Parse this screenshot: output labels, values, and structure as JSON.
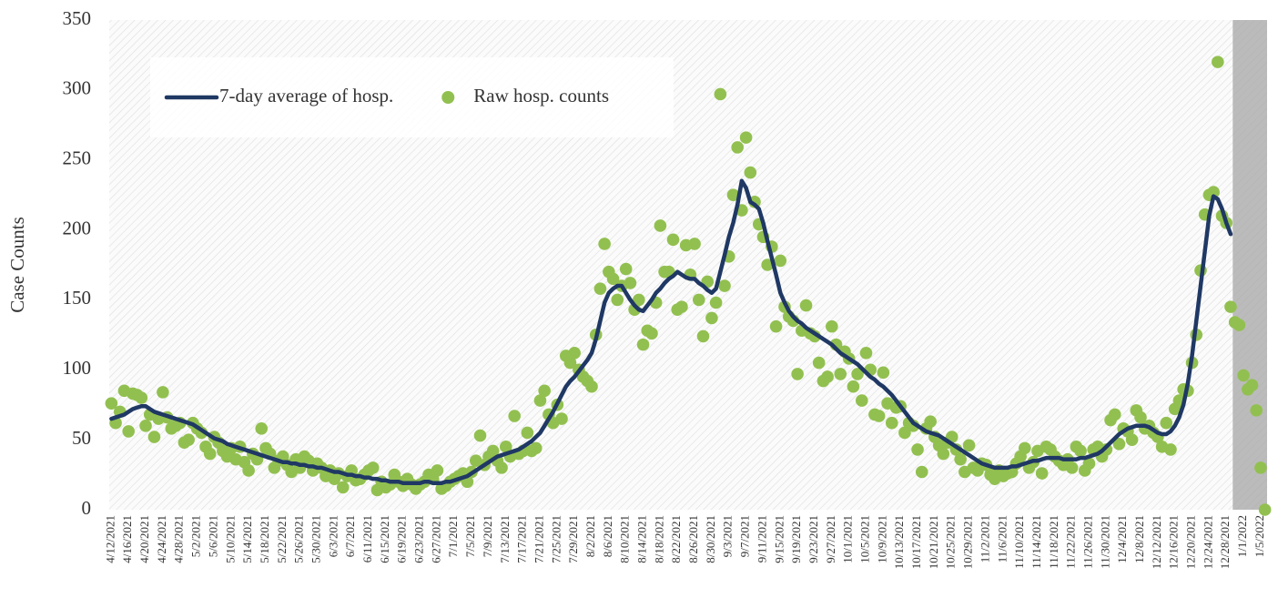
{
  "chart_data": {
    "type": "line",
    "y_label": "Case Counts",
    "categories": [
      "4/12/2021",
      null,
      null,
      null,
      "4/16/2021",
      null,
      null,
      null,
      "4/20/2021",
      null,
      null,
      null,
      "4/24/2021",
      null,
      null,
      null,
      "4/28/2021",
      null,
      null,
      null,
      "5/2/2021",
      null,
      null,
      null,
      "5/6/2021",
      null,
      null,
      null,
      "5/10/2021",
      null,
      null,
      null,
      "5/14/2021",
      null,
      null,
      null,
      "5/18/2021",
      null,
      null,
      null,
      "5/22/2021",
      null,
      null,
      null,
      "5/26/2021",
      null,
      null,
      null,
      "5/30/2021",
      null,
      null,
      null,
      "6/3/2021",
      null,
      null,
      null,
      "6/7/2021",
      null,
      null,
      null,
      "6/11/2021",
      null,
      null,
      null,
      "6/15/2021",
      null,
      null,
      null,
      "6/19/2021",
      null,
      null,
      null,
      "6/23/2021",
      null,
      null,
      null,
      "6/27/2021",
      null,
      null,
      null,
      "7/1/2021",
      null,
      null,
      null,
      "7/5/2021",
      null,
      null,
      null,
      "7/9/2021",
      null,
      null,
      null,
      "7/13/2021",
      null,
      null,
      null,
      "7/17/2021",
      null,
      null,
      null,
      "7/21/2021",
      null,
      null,
      null,
      "7/25/2021",
      null,
      null,
      null,
      "7/29/2021",
      null,
      null,
      null,
      "8/2/2021",
      null,
      null,
      null,
      "8/6/2021",
      null,
      null,
      null,
      "8/10/2021",
      null,
      null,
      null,
      "8/14/2021",
      null,
      null,
      null,
      "8/18/2021",
      null,
      null,
      null,
      "8/22/2021",
      null,
      null,
      null,
      "8/26/2021",
      null,
      null,
      null,
      "8/30/2021",
      null,
      null,
      null,
      "9/3/2021",
      null,
      null,
      null,
      "9/7/2021",
      null,
      null,
      null,
      "9/11/2021",
      null,
      null,
      null,
      "9/15/2021",
      null,
      null,
      null,
      "9/19/2021",
      null,
      null,
      null,
      "9/23/2021",
      null,
      null,
      null,
      "9/27/2021",
      null,
      null,
      null,
      "10/1/2021",
      null,
      null,
      null,
      "10/5/2021",
      null,
      null,
      null,
      "10/9/2021",
      null,
      null,
      null,
      "10/13/2021",
      null,
      null,
      null,
      "10/17/2021",
      null,
      null,
      null,
      "10/21/2021",
      null,
      null,
      null,
      "10/25/2021",
      null,
      null,
      null,
      "10/29/2021",
      null,
      null,
      null,
      "11/2/2021",
      null,
      null,
      null,
      "11/6/2021",
      null,
      null,
      null,
      "11/10/2021",
      null,
      null,
      null,
      "11/14/2021",
      null,
      null,
      null,
      "11/18/2021",
      null,
      null,
      null,
      "11/22/2021",
      null,
      null,
      null,
      "11/26/2021",
      null,
      null,
      null,
      "11/30/2021",
      null,
      null,
      null,
      "12/4/2021",
      null,
      null,
      null,
      "12/8/2021",
      null,
      null,
      null,
      "12/12/2021",
      null,
      null,
      null,
      "12/16/2021",
      null,
      null,
      null,
      "12/20/2021",
      null,
      null,
      null,
      "12/24/2021",
      null,
      null,
      null,
      "12/28/2021",
      null,
      null,
      null,
      "1/1/2022",
      null,
      null,
      null,
      "1/5/2022",
      null
    ],
    "series": [
      {
        "name": "7-day average of hosp.",
        "color": "#1f3864",
        "mode": "line",
        "values": [
          65,
          66,
          67,
          68,
          70,
          72,
          73,
          74,
          74,
          72,
          70,
          69,
          68,
          67,
          66,
          65,
          64,
          63,
          62,
          61,
          59,
          57,
          55,
          53,
          51,
          50,
          49,
          47,
          46,
          45,
          44,
          43,
          42,
          41,
          40,
          39,
          38,
          37,
          36,
          35,
          34,
          34,
          33,
          33,
          32,
          32,
          31,
          31,
          30,
          30,
          29,
          28,
          27,
          27,
          26,
          25,
          25,
          24,
          24,
          23,
          23,
          22,
          22,
          21,
          21,
          20,
          20,
          20,
          19,
          19,
          19,
          19,
          19,
          20,
          20,
          19,
          19,
          19,
          20,
          20,
          21,
          22,
          23,
          24,
          26,
          28,
          30,
          32,
          34,
          36,
          38,
          39,
          40,
          41,
          42,
          43,
          45,
          47,
          49,
          52,
          55,
          60,
          65,
          70,
          76,
          82,
          88,
          92,
          95,
          99,
          103,
          107,
          112,
          122,
          135,
          148,
          155,
          158,
          160,
          160,
          155,
          150,
          146,
          143,
          142,
          146,
          150,
          155,
          158,
          162,
          165,
          167,
          170,
          168,
          166,
          165,
          165,
          162,
          160,
          157,
          155,
          158,
          170,
          182,
          195,
          205,
          218,
          235,
          230,
          220,
          218,
          215,
          205,
          192,
          180,
          168,
          155,
          148,
          142,
          138,
          135,
          133,
          130,
          128,
          126,
          124,
          122,
          120,
          118,
          115,
          112,
          110,
          108,
          106,
          104,
          101,
          98,
          95,
          93,
          90,
          88,
          85,
          82,
          78,
          74,
          70,
          66,
          62,
          60,
          58,
          56,
          55,
          54,
          53,
          51,
          49,
          47,
          45,
          43,
          41,
          39,
          37,
          35,
          33,
          32,
          31,
          30,
          30,
          30,
          30,
          31,
          31,
          32,
          33,
          34,
          35,
          35,
          36,
          37,
          37,
          37,
          37,
          36,
          36,
          36,
          36,
          37,
          37,
          38,
          39,
          40,
          42,
          45,
          48,
          51,
          54,
          56,
          58,
          59,
          60,
          60,
          60,
          59,
          57,
          55,
          54,
          54,
          56,
          60,
          66,
          75,
          90,
          110,
          135,
          160,
          185,
          210,
          224,
          222,
          215,
          205,
          197,
          null,
          null,
          null,
          null,
          null,
          null,
          null,
          null
        ]
      },
      {
        "name": "Raw hosp. counts",
        "color": "#92c050",
        "mode": "markers",
        "values": [
          76,
          62,
          70,
          85,
          56,
          83,
          82,
          80,
          60,
          68,
          52,
          65,
          84,
          66,
          58,
          60,
          62,
          48,
          50,
          62,
          58,
          55,
          45,
          40,
          52,
          48,
          42,
          38,
          44,
          36,
          45,
          34,
          28,
          40,
          36,
          58,
          44,
          40,
          30,
          35,
          38,
          32,
          27,
          36,
          30,
          38,
          35,
          28,
          33,
          30,
          24,
          28,
          22,
          26,
          16,
          24,
          28,
          21,
          22,
          25,
          28,
          30,
          14,
          20,
          16,
          18,
          25,
          20,
          17,
          22,
          18,
          15,
          18,
          20,
          25,
          22,
          28,
          15,
          17,
          20,
          22,
          24,
          26,
          20,
          27,
          35,
          53,
          32,
          38,
          42,
          35,
          30,
          45,
          38,
          67,
          40,
          42,
          55,
          42,
          44,
          78,
          85,
          68,
          62,
          75,
          65,
          110,
          105,
          112,
          100,
          95,
          92,
          88,
          125,
          158,
          190,
          170,
          165,
          150,
          160,
          172,
          162,
          143,
          150,
          118,
          128,
          126,
          148,
          203,
          170,
          170,
          193,
          143,
          145,
          189,
          168,
          190,
          150,
          124,
          163,
          137,
          148,
          297,
          160,
          181,
          225,
          259,
          214,
          266,
          241,
          220,
          204,
          195,
          175,
          188,
          131,
          178,
          145,
          138,
          135,
          97,
          128,
          146,
          126,
          124,
          105,
          92,
          95,
          131,
          118,
          97,
          113,
          108,
          88,
          97,
          78,
          112,
          100,
          68,
          67,
          98,
          76,
          62,
          73,
          74,
          55,
          62,
          60,
          43,
          27,
          58,
          63,
          52,
          46,
          40,
          48,
          52,
          43,
          36,
          27,
          46,
          30,
          28,
          33,
          32,
          25,
          22,
          28,
          24,
          26,
          27,
          33,
          38,
          44,
          30,
          34,
          42,
          26,
          45,
          43,
          38,
          35,
          32,
          36,
          30,
          45,
          42,
          28,
          33,
          43,
          45,
          38,
          43,
          64,
          68,
          47,
          58,
          56,
          50,
          71,
          66,
          58,
          60,
          55,
          52,
          45,
          62,
          43,
          72,
          78,
          86,
          85,
          105,
          125,
          171,
          211,
          225,
          227,
          320,
          210,
          205,
          145,
          134,
          132,
          96,
          86,
          89,
          71,
          30,
          0
        ]
      }
    ],
    "ylim": [
      0,
      350
    ],
    "yticks": [
      0,
      50,
      100,
      150,
      200,
      250,
      300,
      350
    ],
    "grid": false,
    "legend": "upper left"
  }
}
